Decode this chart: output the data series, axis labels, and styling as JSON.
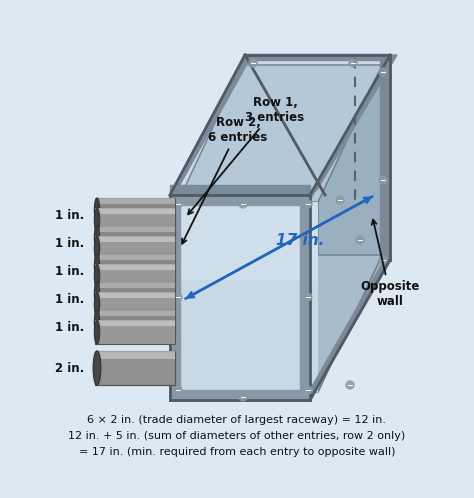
{
  "bg_color": "#dde9f2",
  "border_color": "#5588aa",
  "caption_line1": "6 × 2 in. (trade diameter of largest raceway) = 12 in.",
  "caption_line2": "12 in. + 5 in. (sum of diameters of other entries, row 2 only)",
  "caption_line3": "= 17 in. (min. required from each entry to opposite wall)",
  "conduit_labels": [
    "1 in.",
    "1 in.",
    "1 in.",
    "1 in.",
    "1 in.",
    "2 in."
  ],
  "dim_label": "17 in.",
  "dim_arrow_color": "#2266bb",
  "dim_text_color": "#2266bb",
  "row1_label": "Row 1,\n3 entries",
  "row2_label": "Row 2,\n6 entries",
  "opposite_wall": "Opposite\nwall",
  "box_top_color": "#b8c8d8",
  "box_top_color2": "#ccd8e4",
  "box_right_color": "#a0b4c4",
  "box_front_color": "#b0c2d2",
  "box_inner_color": "#c8d8e4",
  "box_inner_right": "#9aafc0",
  "box_inner_bottom": "#a8bccb",
  "box_edge_color": "#6a8090",
  "box_frame_color": "#7a8898",
  "conduit_dark": "#787878",
  "conduit_mid": "#989898",
  "conduit_light": "#c0c0c0",
  "conduit_face": "#505050",
  "screw_color": "#889aaa"
}
